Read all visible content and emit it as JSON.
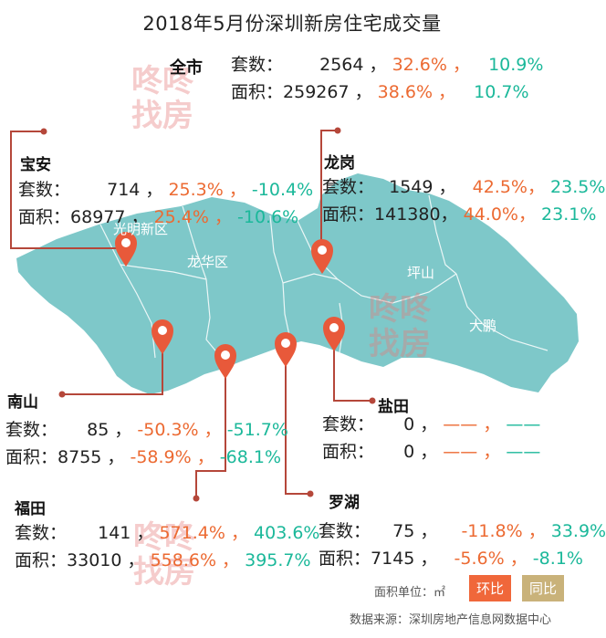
{
  "title": "2018年5月份深圳新房住宅成交量",
  "watermark": [
    "咚咚",
    "找房"
  ],
  "labels": {
    "units": "套数：",
    "area": "面积："
  },
  "city": {
    "name": "全市",
    "units": {
      "value": "2564",
      "mom": "32.6%",
      "yoy": "10.9%"
    },
    "area": {
      "value": "259267",
      "mom": "38.6%",
      "yoy": "10.7%"
    }
  },
  "regions": {
    "baoan": {
      "name": "宝安",
      "units": {
        "value": "714",
        "mom": "25.3%",
        "yoy": "-10.4%"
      },
      "area": {
        "value": "68977",
        "mom": "25.4%",
        "yoy": "-10.6%"
      }
    },
    "longgang": {
      "name": "龙岗",
      "units": {
        "value": "1549",
        "mom": "42.5%",
        "yoy": "23.5%"
      },
      "area": {
        "value": "141380",
        "mom": "44.0%",
        "yoy": "23.1%"
      }
    },
    "nanshan": {
      "name": "南山",
      "units": {
        "value": "85",
        "mom": "-50.3%",
        "yoy": "-51.7%"
      },
      "area": {
        "value": "8755",
        "mom": "-58.9%",
        "yoy": "-68.1%"
      }
    },
    "yantian": {
      "name": "盐田",
      "units": {
        "value": "0",
        "mom": "——",
        "yoy": "——"
      },
      "area": {
        "value": "0",
        "mom": "——",
        "yoy": "——"
      }
    },
    "futian": {
      "name": "福田",
      "units": {
        "value": "141",
        "mom": "571.4%",
        "yoy": "403.6%"
      },
      "area": {
        "value": "33010",
        "mom": "558.6%",
        "yoy": "395.7%"
      }
    },
    "luohu": {
      "name": "罗湖",
      "units": {
        "value": "75",
        "mom": "-11.8%",
        "yoy": "33.9%"
      },
      "area": {
        "value": "7145",
        "mom": "-5.6%",
        "yoy": "-8.1%"
      }
    }
  },
  "map_labels": {
    "guangming": "光明新区",
    "longhua": "龙华区",
    "pingshan": "坪山",
    "dapeng": "大鹏"
  },
  "legend": {
    "unit_label": "面积单位：㎡",
    "mom_label": "环比",
    "yoy_label": "同比"
  },
  "source": "数据来源：深圳房地产信息网数据中心",
  "colors": {
    "map": "#7ec8c9",
    "pin": "#e8593a",
    "orange": "#ec6a32",
    "teal": "#1bb89a",
    "mom_badge": "#f0673a",
    "yoy_badge": "#c9b27a",
    "leader": "#b5473a"
  }
}
